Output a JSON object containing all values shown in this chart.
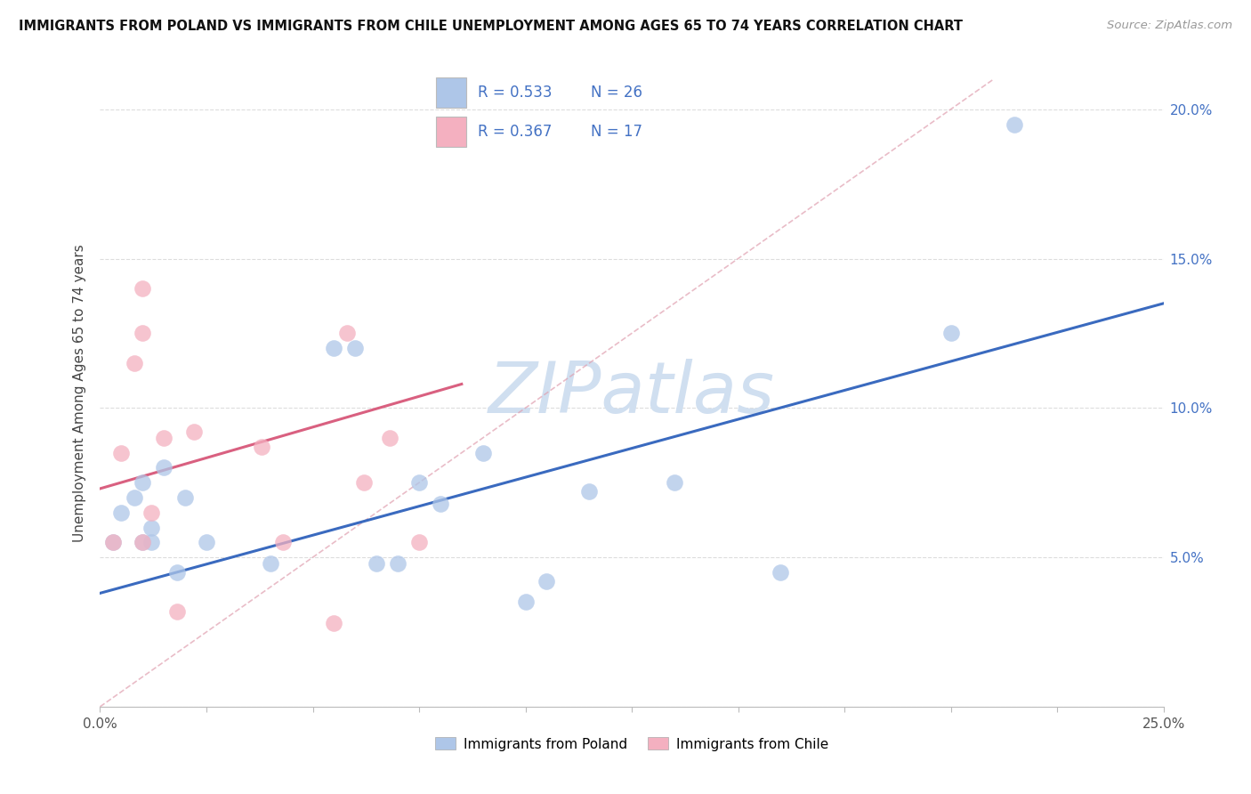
{
  "title": "IMMIGRANTS FROM POLAND VS IMMIGRANTS FROM CHILE UNEMPLOYMENT AMONG AGES 65 TO 74 YEARS CORRELATION CHART",
  "source": "Source: ZipAtlas.com",
  "ylabel": "Unemployment Among Ages 65 to 74 years",
  "xlim": [
    0.0,
    0.25
  ],
  "ylim": [
    0.0,
    0.21
  ],
  "xticks": [
    0.0,
    0.025,
    0.05,
    0.075,
    0.1,
    0.125,
    0.15,
    0.175,
    0.2,
    0.225,
    0.25
  ],
  "yticks": [
    0.0,
    0.05,
    0.1,
    0.15,
    0.2
  ],
  "poland_R": 0.533,
  "poland_N": 26,
  "chile_R": 0.367,
  "chile_N": 17,
  "poland_color": "#aec6e8",
  "chile_color": "#f4b0c0",
  "poland_line_color": "#3a6abf",
  "chile_line_color": "#d96080",
  "diagonal_color": "#e0a0b0",
  "poland_scatter_x": [
    0.003,
    0.005,
    0.008,
    0.01,
    0.01,
    0.012,
    0.012,
    0.015,
    0.018,
    0.02,
    0.025,
    0.04,
    0.055,
    0.06,
    0.065,
    0.07,
    0.075,
    0.08,
    0.09,
    0.1,
    0.105,
    0.115,
    0.135,
    0.16,
    0.2,
    0.215
  ],
  "poland_scatter_y": [
    0.055,
    0.065,
    0.07,
    0.055,
    0.075,
    0.06,
    0.055,
    0.08,
    0.045,
    0.07,
    0.055,
    0.048,
    0.12,
    0.12,
    0.048,
    0.048,
    0.075,
    0.068,
    0.085,
    0.035,
    0.042,
    0.072,
    0.075,
    0.045,
    0.125,
    0.195
  ],
  "chile_scatter_x": [
    0.003,
    0.005,
    0.008,
    0.01,
    0.01,
    0.01,
    0.012,
    0.015,
    0.018,
    0.022,
    0.038,
    0.043,
    0.055,
    0.058,
    0.062,
    0.068,
    0.075
  ],
  "chile_scatter_y": [
    0.055,
    0.085,
    0.115,
    0.125,
    0.14,
    0.055,
    0.065,
    0.09,
    0.032,
    0.092,
    0.087,
    0.055,
    0.028,
    0.125,
    0.075,
    0.09,
    0.055
  ],
  "poland_line_x": [
    0.0,
    0.25
  ],
  "poland_line_y": [
    0.038,
    0.135
  ],
  "chile_line_x": [
    0.0,
    0.085
  ],
  "chile_line_y": [
    0.073,
    0.108
  ],
  "diagonal_line_x": [
    0.0,
    0.21
  ],
  "diagonal_line_y": [
    0.0,
    0.21
  ],
  "bg_color": "#ffffff",
  "grid_color": "#dddddd",
  "watermark_color": "#d0dff0"
}
